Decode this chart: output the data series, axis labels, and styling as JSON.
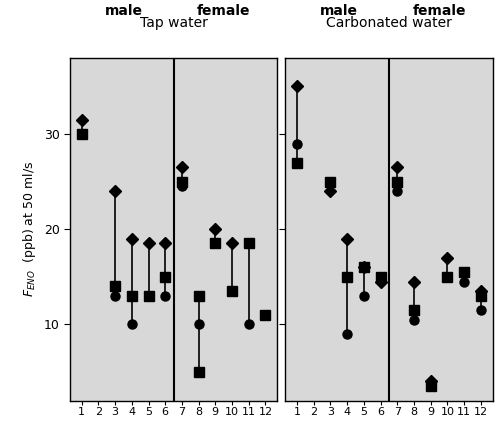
{
  "title_tap": "Tap water",
  "title_carb": "Carbonated water",
  "male_label": "male",
  "female_label": "female",
  "ylim": [
    2,
    38
  ],
  "yticks": [
    10,
    20,
    30
  ],
  "bg_color": "#d8d8d8",
  "tap_baseline": [
    31.5,
    null,
    24,
    19,
    18.5,
    18.5,
    26.5,
    null,
    20,
    18.5,
    null,
    null
  ],
  "tap_immediate": [
    30,
    null,
    14,
    13,
    13,
    15,
    25,
    13,
    18.5,
    13.5,
    18.5,
    11
  ],
  "tap_after2min": [
    null,
    null,
    13,
    10,
    null,
    13,
    24.5,
    10,
    null,
    null,
    10,
    null
  ],
  "tap_extra": {
    "7": {
      "val": 5,
      "marker": "s"
    }
  },
  "carb_baseline": [
    35,
    null,
    24,
    19,
    16,
    14.5,
    26.5,
    14.5,
    null,
    17,
    null,
    13.5
  ],
  "carb_immediate": [
    27,
    null,
    25,
    15,
    16,
    15,
    25,
    11.5,
    null,
    15,
    15.5,
    13
  ],
  "carb_after2min": [
    29,
    null,
    null,
    9,
    13,
    null,
    24,
    10.5,
    null,
    null,
    14.5,
    11.5
  ],
  "carb_extra": {
    "8": [
      {
        "val": 4.0,
        "marker": "D"
      },
      {
        "val": 3.5,
        "marker": "s"
      }
    ]
  },
  "x_positions": [
    1,
    2,
    3,
    4,
    5,
    6,
    7,
    8,
    9,
    10,
    11,
    12
  ]
}
